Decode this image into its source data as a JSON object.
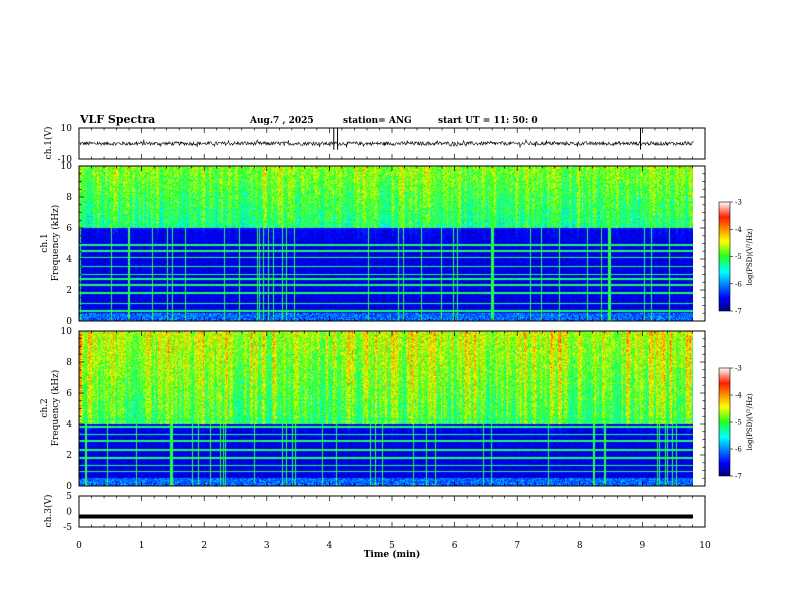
{
  "chart_data": {
    "type": "heatmap",
    "title": "VLF Spectra",
    "date_label": "Aug.7  , 2025",
    "station_label": "station= ANG",
    "start_label": "start  UT  =   11: 50: 0",
    "xlabel": "Time  (min)",
    "xlim": [
      0,
      10
    ],
    "x_ticks": [
      "0",
      "1",
      "2",
      "3",
      "4",
      "5",
      "6",
      "7",
      "8",
      "9",
      "10"
    ],
    "data_end_min": 9.82,
    "panels": [
      {
        "name": "ch.1(V)",
        "type": "line",
        "ylabel": "ch.1(V)",
        "ylim": [
          -10,
          10
        ],
        "y_ticks": [
          "10",
          "-10"
        ],
        "baseline": 0,
        "noise_amplitude": 1.2,
        "spikes_min": [
          4.07,
          4.13,
          8.97
        ]
      },
      {
        "name": "ch.1 spectrogram",
        "type": "heatmap",
        "ylabel_line1": "ch.1",
        "ylabel_line2": "Frequency  (kHz)",
        "ylim": [
          0,
          10
        ],
        "y_ticks": [
          "0",
          "2",
          "4",
          "6",
          "8",
          "10"
        ],
        "high_band_kHz": [
          6,
          10
        ],
        "quiet_band_kHz": [
          0.5,
          4.5
        ],
        "narrowband_lines_kHz": [
          0.6,
          1.1,
          1.8,
          2.3,
          2.7,
          3.0,
          3.5,
          4.1,
          4.5,
          4.9
        ],
        "colorbar_label": "log(PSD)(V²/Hz)",
        "colorbar_ticks": [
          "-3",
          "-4",
          "-5",
          "-6",
          "-7"
        ],
        "colorbar_range": [
          -7,
          -3
        ]
      },
      {
        "name": "ch.2 spectrogram",
        "type": "heatmap",
        "ylabel_line1": "ch.2",
        "ylabel_line2": "Frequency  (kHz)",
        "ylim": [
          0,
          10
        ],
        "y_ticks": [
          "0",
          "2",
          "4",
          "6",
          "8",
          "10"
        ],
        "high_band_kHz": [
          4,
          10
        ],
        "quiet_band_kHz": [
          0.5,
          4
        ],
        "narrowband_lines_kHz": [
          0.9,
          1.3,
          1.8,
          2.3,
          2.9,
          3.3,
          3.8,
          4.3
        ],
        "colorbar_label": "log(PSD)(V²/Hz)",
        "colorbar_ticks": [
          "-3",
          "-4",
          "-5",
          "-6",
          "-7"
        ],
        "colorbar_range": [
          -7,
          -3
        ]
      },
      {
        "name": "ch.3(V)",
        "type": "line",
        "ylabel": "ch.3(V)",
        "ylim": [
          -5,
          5
        ],
        "y_ticks": [
          "5",
          "0",
          "-5"
        ],
        "baseline": -1.6
      }
    ]
  }
}
